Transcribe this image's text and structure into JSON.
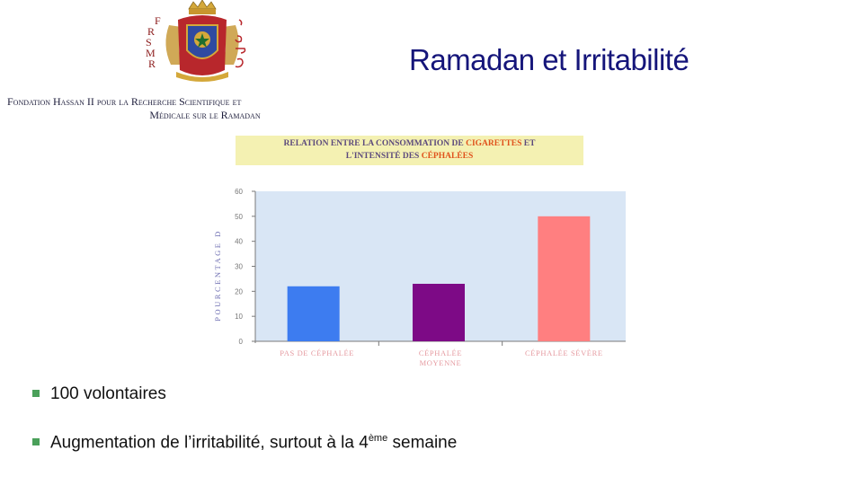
{
  "header": {
    "title": "Ramadan et Irritabilité",
    "logo_letters": [
      "F",
      "R",
      "S",
      "M",
      "R"
    ],
    "foundation_line1": "Fondation Hassan II pour la Recherche Scientifique et",
    "foundation_line2": "Médicale sur le Ramadan"
  },
  "chart_title": {
    "part1": "RELATION ENTRE LA CONSOMMATION DE ",
    "hl1": "CIGARETTES",
    "part2": " ET",
    "part3": "L'INTENSITÉ DES ",
    "hl2": "CÉPHALÉES"
  },
  "chart_data": {
    "type": "bar",
    "title": "RELATION ENTRE LA CONSOMMATION DE CIGARETTES ET L'INTENSITÉ DES CÉPHALÉES",
    "ylabel": "POURCENTAGE D",
    "categories": [
      "PAS DE CÉPHALÉE",
      "CÉPHALÉE MOYENNE",
      "CÉPHALÉE SÉVÈRE"
    ],
    "category_lines": [
      [
        "PAS DE CÉPHALÉE"
      ],
      [
        "CÉPHALÉE",
        "MOYENNE"
      ],
      [
        "CÉPHALÉE SÉVÈRE"
      ]
    ],
    "values": [
      22,
      23,
      50
    ],
    "colors": [
      "#3d7cf0",
      "#7d0a86",
      "#ff7f80"
    ],
    "ylim": [
      0,
      60
    ],
    "yticks": [
      0,
      10,
      20,
      30,
      40,
      50,
      60
    ],
    "plot_background": "#d9e6f5",
    "grid": false
  },
  "bullets": {
    "b1": "100 volontaires",
    "b2_pre": "Augmentation de l’irritabilité, surtout à la 4",
    "b2_sup": "ème",
    "b2_post": " semaine"
  }
}
